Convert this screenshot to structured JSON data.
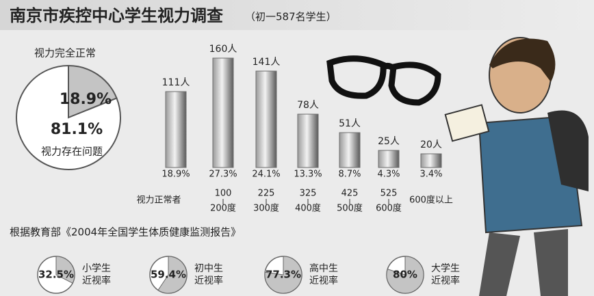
{
  "title": "南京市疾控中心学生视力调查",
  "subtitle": "（初一587名学生）",
  "chart_data": [
    {
      "type": "pie",
      "categories": [
        "视力完全正常",
        "视力存在问题"
      ],
      "values": [
        18.9,
        81.1
      ],
      "value_labels": [
        "18.9%",
        "81.1%"
      ],
      "colors": [
        "#c4c4c4",
        "#ffffff"
      ]
    },
    {
      "type": "bar",
      "categories": [
        [
          "视力正常者"
        ],
        [
          "100",
          "200度"
        ],
        [
          "225",
          "300度"
        ],
        [
          "325",
          "400度"
        ],
        [
          "425",
          "500度"
        ],
        [
          "525",
          "600度"
        ],
        [
          "600度以上"
        ]
      ],
      "values": [
        111,
        160,
        141,
        78,
        51,
        25,
        20
      ],
      "value_labels": [
        "111人",
        "160人",
        "141人",
        "78人",
        "51人",
        "25人",
        "20人"
      ],
      "percent_labels": [
        "18.9%",
        "27.3%",
        "24.1%",
        "13.3%",
        "8.7%",
        "4.3%",
        "3.4%"
      ],
      "color": "#6e6e6e"
    },
    {
      "type": "pie-set",
      "title": "根据教育部《2004年全国学生体质健康监测报告》",
      "categories": [
        [
          "小学生",
          "近视率"
        ],
        [
          "初中生",
          "近视率"
        ],
        [
          "高中生",
          "近视率"
        ],
        [
          "大学生",
          "近视率"
        ]
      ],
      "values": [
        32.5,
        59.4,
        77.3,
        80
      ],
      "value_labels": [
        "32.5%",
        "59.4%",
        "77.3%",
        "80%"
      ],
      "colors": [
        "#c4c4c4",
        "#ffffff"
      ]
    }
  ]
}
